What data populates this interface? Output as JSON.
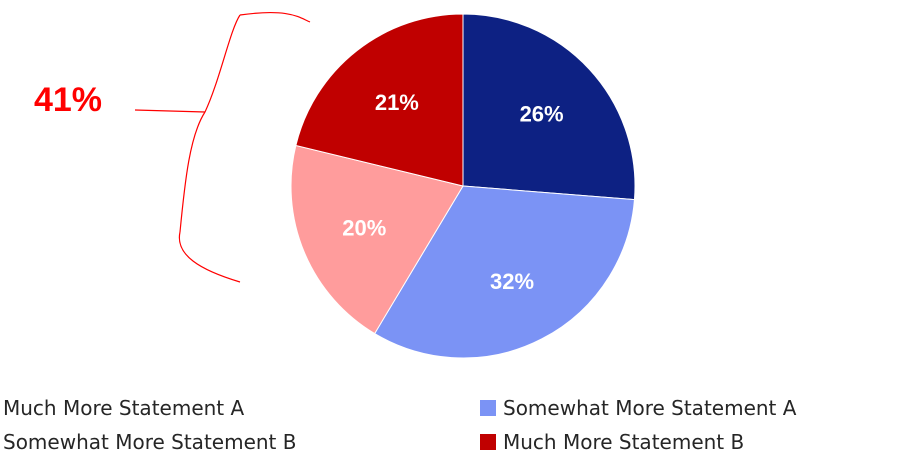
{
  "chart_data": {
    "type": "pie",
    "title": "",
    "slices": [
      {
        "name": "Much More Statement A",
        "value": 26,
        "label": "26%",
        "color": "#0d2183"
      },
      {
        "name": "Somewhat More Statement A",
        "value": 32,
        "label": "32%",
        "color": "#7b93f5"
      },
      {
        "name": "Somewhat More Statement B",
        "value": 20,
        "label": "20%",
        "color": "#ff9c9c"
      },
      {
        "name": "Much More Statement B",
        "value": 21,
        "label": "21%",
        "color": "#c00000"
      }
    ],
    "annotation": {
      "text": "41%",
      "color": "#ff0000"
    },
    "legend": {
      "position": "bottom",
      "entries": [
        {
          "name": "Much More Statement A",
          "color": "#0d2183"
        },
        {
          "name": "Somewhat More Statement A",
          "color": "#7b93f5"
        },
        {
          "name": "Somewhat More Statement B",
          "color": "#ff9c9c"
        },
        {
          "name": "Much More Statement B",
          "color": "#c00000"
        }
      ]
    }
  }
}
